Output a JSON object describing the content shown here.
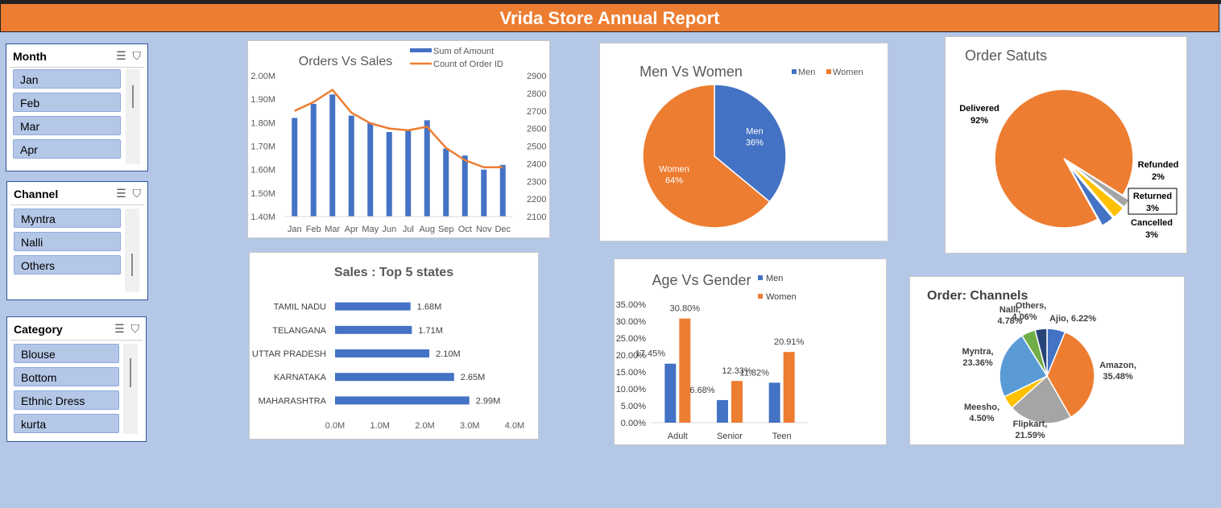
{
  "report_title": "Vrida Store Annual Report",
  "slicers": {
    "month": {
      "title": "Month",
      "items": [
        "Jan",
        "Feb",
        "Mar",
        "Apr"
      ]
    },
    "channel": {
      "title": "Channel",
      "items": [
        "Myntra",
        "Nalli",
        "Others"
      ]
    },
    "category": {
      "title": "Category",
      "items": [
        "Blouse",
        "Bottom",
        "Ethnic Dress",
        "kurta"
      ]
    }
  },
  "chart_data": [
    {
      "id": "orders_vs_sales",
      "type": "bar",
      "title": "Orders Vs Sales",
      "categories": [
        "Jan",
        "Feb",
        "Mar",
        "Apr",
        "May",
        "Jun",
        "Jul",
        "Aug",
        "Sep",
        "Oct",
        "Nov",
        "Dec"
      ],
      "series": [
        {
          "name": "Sum of Amount",
          "type": "bar",
          "color": "#4472c4",
          "values": [
            1.82,
            1.88,
            1.92,
            1.83,
            1.8,
            1.76,
            1.77,
            1.81,
            1.69,
            1.66,
            1.6,
            1.62
          ]
        },
        {
          "name": "Count of Order ID",
          "type": "line",
          "axis": "secondary",
          "color": "#ed7d31",
          "values": [
            2700,
            2750,
            2820,
            2690,
            2630,
            2600,
            2590,
            2610,
            2490,
            2420,
            2380,
            2380
          ]
        }
      ],
      "y_ticks": [
        "2.00M",
        "1.90M",
        "1.80M",
        "1.70M",
        "1.60M",
        "1.50M",
        "1.40M"
      ],
      "ylim": [
        1.4,
        2.0
      ],
      "y2_ticks": [
        "2900",
        "2800",
        "2700",
        "2600",
        "2500",
        "2400",
        "2300",
        "2200",
        "2100"
      ],
      "y2lim": [
        2100,
        2900
      ],
      "legend": "top-right",
      "grid": false
    },
    {
      "id": "men_vs_women",
      "type": "pie",
      "title": "Men Vs Women",
      "legend_items": [
        "Men",
        "Women"
      ],
      "slices": [
        {
          "label": "Men",
          "pct_label": "36%",
          "value": 36,
          "color": "#4472c4"
        },
        {
          "label": "Women",
          "pct_label": "64%",
          "value": 64,
          "color": "#ed7d31"
        }
      ],
      "legend": "top-right"
    },
    {
      "id": "order_status",
      "type": "pie",
      "title": "Order Satuts",
      "slices": [
        {
          "label": "Delivered",
          "pct_label": "92%",
          "value": 92,
          "color": "#ed7d31"
        },
        {
          "label": "Refunded",
          "pct_label": "2%",
          "value": 2,
          "color": "#a5a5a5"
        },
        {
          "label": "Returned",
          "pct_label": "3%",
          "value": 3,
          "color": "#ffc000"
        },
        {
          "label": "Cancelled",
          "pct_label": "3%",
          "value": 3,
          "color": "#4472c4"
        }
      ]
    },
    {
      "id": "top5_states",
      "type": "bar",
      "orientation": "horizontal",
      "title": "Sales : Top 5 states",
      "categories": [
        "TAMIL NADU",
        "TELANGANA",
        "UTTAR PRADESH",
        "KARNATAKA",
        "MAHARASHTRA"
      ],
      "values": [
        1.68,
        1.71,
        2.1,
        2.65,
        2.99
      ],
      "value_labels": [
        "1.68M",
        "1.71M",
        "2.10M",
        "2.65M",
        "2.99M"
      ],
      "x_ticks": [
        "0.0M",
        "1.0M",
        "2.0M",
        "3.0M",
        "4.0M"
      ],
      "xlim": [
        0,
        4
      ],
      "color": "#4472c4",
      "grid": false
    },
    {
      "id": "age_vs_gender",
      "type": "bar",
      "title": "Age Vs Gender",
      "categories": [
        "Adult",
        "Senior",
        "Teen"
      ],
      "series": [
        {
          "name": "Men",
          "color": "#4472c4",
          "values": [
            17.45,
            6.68,
            11.82
          ],
          "labels": [
            "17.45%",
            "6.68%",
            "11.82%"
          ]
        },
        {
          "name": "Women",
          "color": "#ed7d31",
          "values": [
            30.8,
            12.33,
            20.91
          ],
          "labels": [
            "30.80%",
            "12.33%",
            "20.91%"
          ]
        }
      ],
      "y_ticks": [
        "35.00%",
        "30.00%",
        "25.00%",
        "20.00%",
        "15.00%",
        "10.00%",
        "5.00%",
        "0.00%"
      ],
      "ylim": [
        0,
        35
      ],
      "legend": "top-right",
      "grid": false
    },
    {
      "id": "order_channels",
      "type": "pie",
      "title": "Order: Channels",
      "slices": [
        {
          "label": "Ajio",
          "text": "Ajio, 6.22%",
          "value": 6.22,
          "color": "#4472c4"
        },
        {
          "label": "Amazon",
          "text": "Amazon,",
          "text2": "35.48%",
          "value": 35.48,
          "color": "#ed7d31"
        },
        {
          "label": "Flipkart",
          "text": "Flipkart,",
          "text2": "21.59%",
          "value": 21.59,
          "color": "#a5a5a5"
        },
        {
          "label": "Meesho",
          "text": "Meesho,",
          "text2": "4.50%",
          "value": 4.5,
          "color": "#ffc000"
        },
        {
          "label": "Myntra",
          "text": "Myntra,",
          "text2": "23.36%",
          "value": 23.36,
          "color": "#5b9bd5"
        },
        {
          "label": "Nalli",
          "text": "Nalli,",
          "text2": "4.78%",
          "value": 4.78,
          "color": "#70ad47"
        },
        {
          "label": "Others",
          "text": "Others,",
          "text2": "4.06%",
          "value": 4.06,
          "color": "#264478"
        }
      ]
    }
  ]
}
